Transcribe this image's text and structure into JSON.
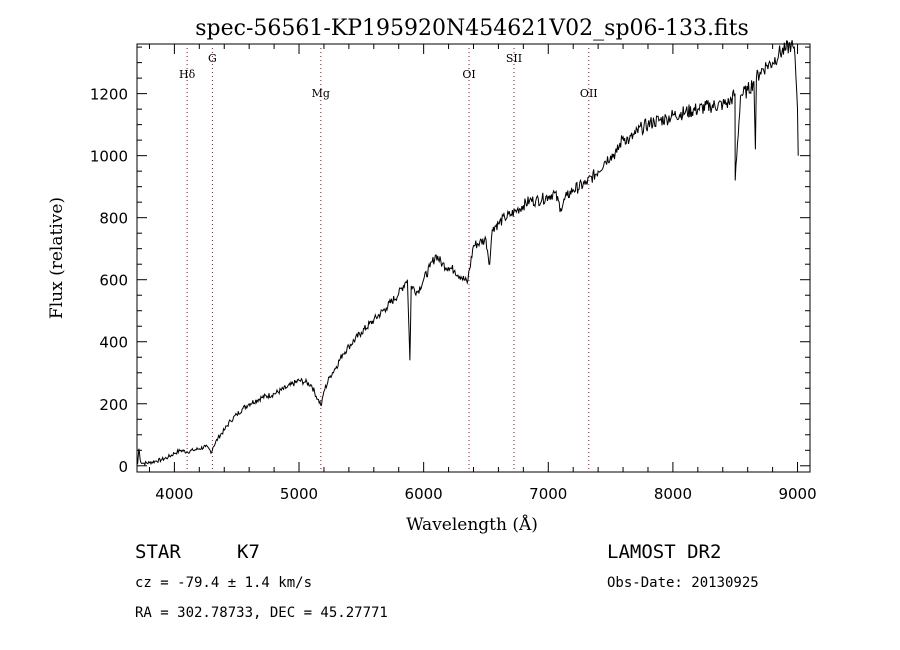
{
  "chart_data": {
    "type": "line",
    "title": "spec-56561-KP195920N454621V02_sp06-133.fits",
    "xlabel": "Wavelength (Å)",
    "ylabel": "Flux (relative)",
    "xlim": [
      3700,
      9100
    ],
    "ylim": [
      -20,
      1360
    ],
    "x_ticks": [
      4000,
      5000,
      6000,
      7000,
      8000,
      9000
    ],
    "y_ticks": [
      0,
      200,
      400,
      600,
      800,
      1000,
      1200
    ],
    "grid": false,
    "line_color": "#000000",
    "marker_line_color": "#cc0000",
    "series": [
      {
        "x": [
          3705,
          3715,
          3730,
          3750,
          3800,
          3850,
          3900,
          3950,
          4000,
          4050,
          4100,
          4150,
          4200,
          4250,
          4300,
          4310,
          4350,
          4400,
          4450,
          4500,
          4550,
          4600,
          4700,
          4800,
          4900,
          5000,
          5050,
          5100,
          5150,
          5180,
          5200,
          5250,
          5300,
          5350,
          5400,
          5500,
          5600,
          5700,
          5800,
          5850,
          5870,
          5890,
          5900,
          5950,
          6000,
          6050,
          6100,
          6150,
          6200,
          6250,
          6300,
          6350,
          6400,
          6450,
          6500,
          6530,
          6550,
          6560,
          6600,
          6650,
          6700,
          6750,
          6800,
          6850,
          6900,
          6950,
          7000,
          7050,
          7100,
          7150,
          7200,
          7300,
          7400,
          7450,
          7500,
          7550,
          7600,
          7650,
          7700,
          7750,
          7800,
          7850,
          7900,
          7950,
          8000,
          8100,
          8200,
          8300,
          8400,
          8450,
          8498,
          8500,
          8542,
          8545,
          8600,
          8650,
          8662,
          8670,
          8700,
          8750,
          8800,
          8850,
          8900,
          8950,
          8980,
          9000,
          9005
        ],
        "y": [
          5,
          55,
          12,
          8,
          10,
          15,
          20,
          28,
          40,
          50,
          45,
          50,
          55,
          62,
          45,
          60,
          90,
          115,
          145,
          165,
          185,
          200,
          220,
          232,
          252,
          275,
          270,
          260,
          215,
          195,
          240,
          290,
          320,
          360,
          385,
          430,
          470,
          510,
          555,
          590,
          600,
          340,
          580,
          560,
          600,
          640,
          680,
          650,
          640,
          630,
          610,
          590,
          710,
          720,
          730,
          650,
          760,
          770,
          780,
          800,
          810,
          825,
          840,
          855,
          855,
          860,
          870,
          880,
          830,
          870,
          890,
          910,
          950,
          980,
          1000,
          1010,
          1060,
          1050,
          1070,
          1090,
          1100,
          1110,
          1115,
          1120,
          1130,
          1140,
          1150,
          1160,
          1165,
          1170,
          1200,
          920,
          1190,
          1195,
          1210,
          1240,
          1020,
          1250,
          1270,
          1290,
          1300,
          1330,
          1340,
          1360,
          1320,
          1150,
          1000
        ]
      }
    ],
    "line_markers": [
      {
        "label": "Hδ",
        "x": 4102
      },
      {
        "label": "G",
        "x": 4305
      },
      {
        "label": "Mg",
        "x": 5175
      },
      {
        "label": "OI",
        "x": 6364
      },
      {
        "label": "SII",
        "x": 6725
      },
      {
        "label": "OII",
        "x": 7325
      }
    ]
  },
  "info": {
    "class": "STAR",
    "subclass": "K7",
    "survey": "LAMOST DR2",
    "redshift": "cz = -79.4 ± 1.4 km/s",
    "obs_date": "Obs-Date: 20130925",
    "coords": "RA = 302.78733, DEC =  45.27771"
  }
}
